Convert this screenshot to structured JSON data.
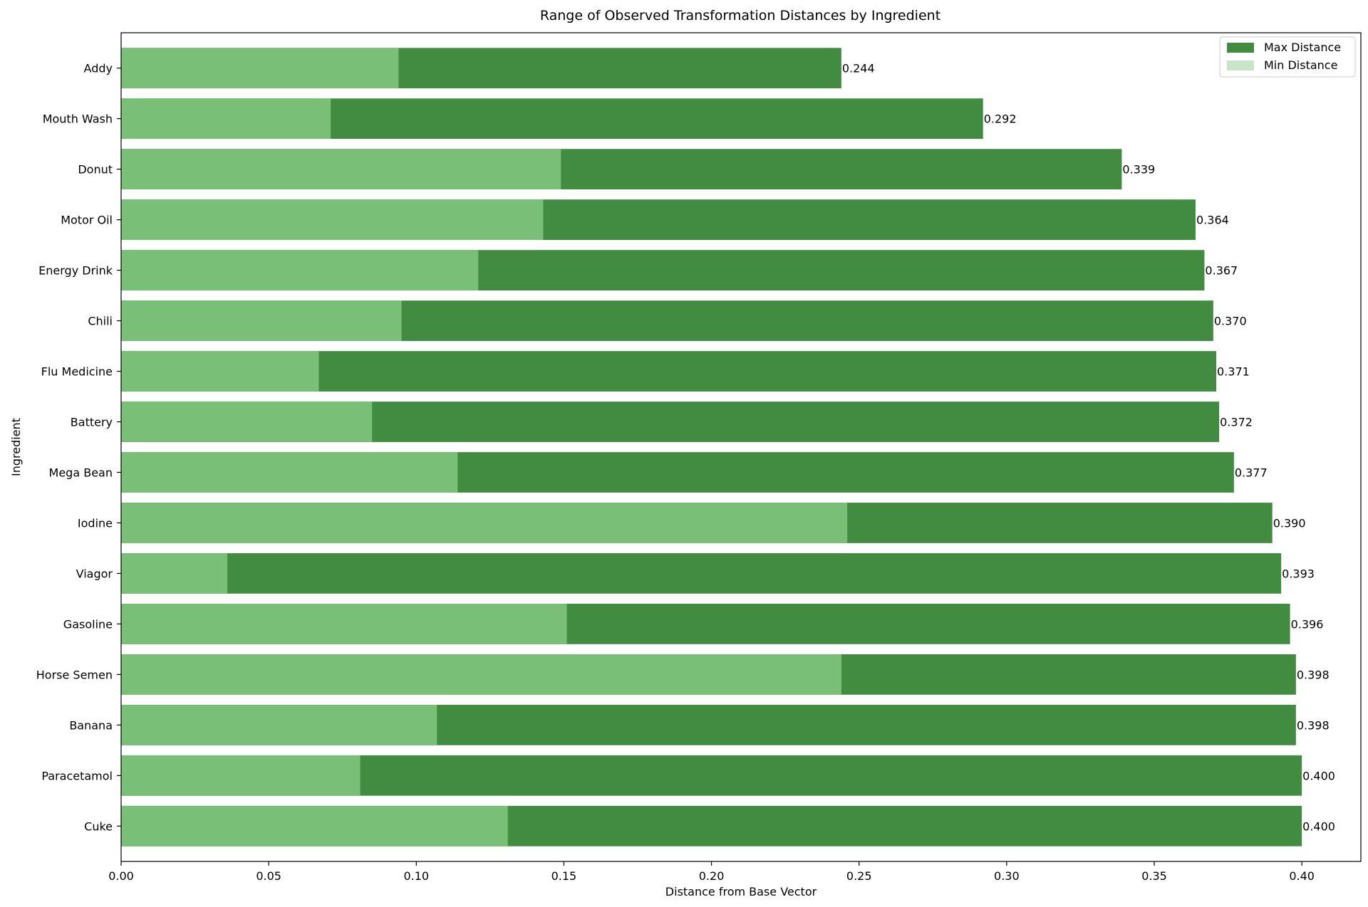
{
  "chart_data": {
    "type": "bar",
    "orientation": "horizontal",
    "title": "Range of Observed Transformation Distances by Ingredient",
    "xlabel": "Distance from Base Vector",
    "ylabel": "Ingredient",
    "xlim": [
      0,
      0.42
    ],
    "xticks": [
      "0.00",
      "0.05",
      "0.10",
      "0.15",
      "0.20",
      "0.25",
      "0.30",
      "0.35",
      "0.40"
    ],
    "grid": false,
    "legend_position": "top-right",
    "colors": {
      "max": "#418c40",
      "min": "#79bf77"
    },
    "categories": [
      "Addy",
      "Mouth Wash",
      "Donut",
      "Motor Oil",
      "Energy Drink",
      "Chili",
      "Flu Medicine",
      "Battery",
      "Mega Bean",
      "Iodine",
      "Viagor",
      "Gasoline",
      "Horse Semen",
      "Banana",
      "Paracetamol",
      "Cuke"
    ],
    "series": [
      {
        "name": "Max Distance",
        "values": [
          0.244,
          0.292,
          0.339,
          0.364,
          0.367,
          0.37,
          0.371,
          0.372,
          0.377,
          0.39,
          0.393,
          0.396,
          0.398,
          0.398,
          0.4,
          0.4
        ]
      },
      {
        "name": "Min Distance",
        "values": [
          0.094,
          0.071,
          0.149,
          0.143,
          0.121,
          0.095,
          0.067,
          0.085,
          0.114,
          0.246,
          0.036,
          0.151,
          0.244,
          0.107,
          0.081,
          0.131
        ]
      }
    ],
    "data_labels": [
      "0.244",
      "0.292",
      "0.339",
      "0.364",
      "0.367",
      "0.370",
      "0.371",
      "0.372",
      "0.377",
      "0.390",
      "0.393",
      "0.396",
      "0.398",
      "0.398",
      "0.400",
      "0.400"
    ]
  }
}
